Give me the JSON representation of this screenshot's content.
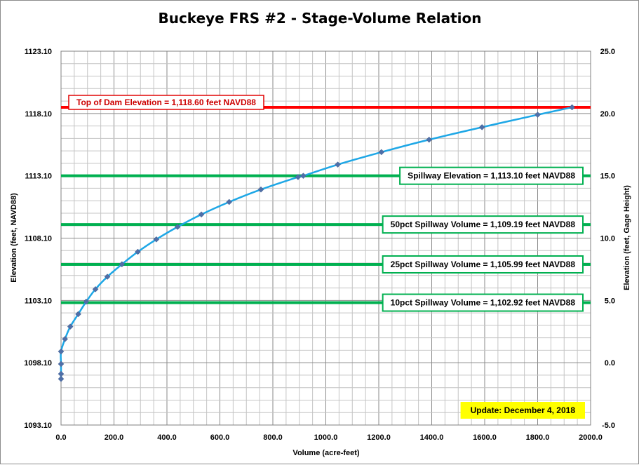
{
  "chart_data": {
    "type": "line",
    "title": "Buckeye FRS #2 - Stage-Volume Relation",
    "xlabel": "Volume (acre-feet)",
    "ylabel": "Elevation (feet, NAVD88)",
    "y2label": "Elevation (feet, Gage Height)",
    "xlim": [
      0,
      2000
    ],
    "ylim": [
      1093.1,
      1123.1
    ],
    "y2lim": [
      -5,
      25
    ],
    "x_ticks": [
      "0.0",
      "200.0",
      "400.0",
      "600.0",
      "800.0",
      "1000.0",
      "1200.0",
      "1400.0",
      "1600.0",
      "1800.0",
      "2000.0"
    ],
    "y_ticks": [
      "1093.10",
      "1098.10",
      "1103.10",
      "1108.10",
      "1113.10",
      "1118.10",
      "1123.10"
    ],
    "y2_ticks": [
      "-5.0",
      "0.0",
      "5.0",
      "10.0",
      "15.0",
      "20.0",
      "25.0"
    ],
    "grid": true,
    "series": [
      {
        "color": "#1ea7e6",
        "marker_color": "#4f6fa8",
        "points": [
          [
            0,
            1096.8
          ],
          [
            0,
            1097.2
          ],
          [
            0,
            1098.0
          ],
          [
            0,
            1099.0
          ],
          [
            15,
            1100.0
          ],
          [
            35,
            1101.0
          ],
          [
            65,
            1102.0
          ],
          [
            95,
            1103.0
          ],
          [
            130,
            1104.0
          ],
          [
            175,
            1105.0
          ],
          [
            230,
            1106.0
          ],
          [
            290,
            1107.0
          ],
          [
            360,
            1108.0
          ],
          [
            440,
            1109.0
          ],
          [
            530,
            1110.0
          ],
          [
            635,
            1111.0
          ],
          [
            755,
            1112.0
          ],
          [
            895,
            1113.0
          ],
          [
            915,
            1113.1
          ],
          [
            1045,
            1114.0
          ],
          [
            1210,
            1115.0
          ],
          [
            1390,
            1116.0
          ],
          [
            1590,
            1117.0
          ],
          [
            1800,
            1118.0
          ],
          [
            1930,
            1118.6
          ]
        ]
      }
    ],
    "reference_lines": [
      {
        "y": 1118.6,
        "color": "#ff0000",
        "label": "Top of Dam Elevation = 1,118.60  feet NAVD88",
        "label_position": "left"
      },
      {
        "y": 1113.1,
        "color": "#00b050",
        "label": "Spillway Elevation = 1,113.10  feet NAVD88",
        "label_position": "right"
      },
      {
        "y": 1109.19,
        "color": "#00b050",
        "label": "50pct Spillway Volume = 1,109.19  feet NAVD88",
        "label_position": "right"
      },
      {
        "y": 1105.99,
        "color": "#00b050",
        "label": "25pct Spillway Volume = 1,105.99  feet NAVD88",
        "label_position": "right"
      },
      {
        "y": 1102.92,
        "color": "#00b050",
        "label": "10pct Spillway Volume = 1,102.92  feet NAVD88",
        "label_position": "right"
      }
    ],
    "annotations": [
      {
        "text": "Update: December 4, 2018",
        "background": "#ffff00",
        "position": "bottom-right"
      }
    ]
  }
}
